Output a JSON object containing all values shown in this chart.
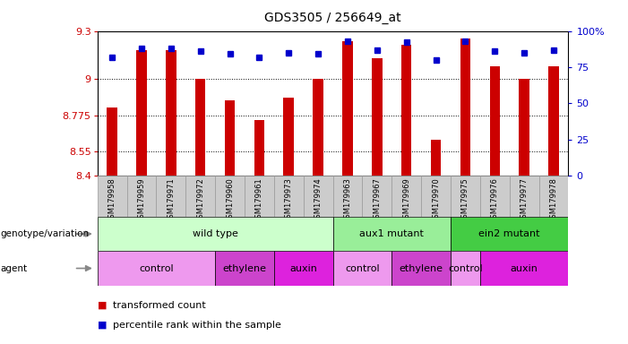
{
  "title": "GDS3505 / 256649_at",
  "samples": [
    "GSM179958",
    "GSM179959",
    "GSM179971",
    "GSM179972",
    "GSM179960",
    "GSM179961",
    "GSM179973",
    "GSM179974",
    "GSM179963",
    "GSM179967",
    "GSM179969",
    "GSM179970",
    "GSM179975",
    "GSM179976",
    "GSM179977",
    "GSM179978"
  ],
  "bar_values": [
    8.825,
    9.18,
    9.18,
    9.0,
    8.87,
    8.745,
    8.885,
    9.0,
    9.235,
    9.13,
    9.215,
    8.625,
    9.255,
    9.08,
    9.0,
    9.08
  ],
  "percentile_values": [
    82,
    88,
    88,
    86,
    84,
    82,
    85,
    84,
    93,
    87,
    92,
    80,
    93,
    86,
    85,
    87
  ],
  "y_min": 8.4,
  "y_max": 9.3,
  "y_ticks": [
    8.4,
    8.55,
    8.775,
    9.0,
    9.3
  ],
  "y_tick_labels": [
    "8.4",
    "8.55",
    "8.775",
    "9",
    "9.3"
  ],
  "right_y_ticks": [
    0,
    25,
    50,
    75,
    100
  ],
  "right_y_tick_labels": [
    "0",
    "25",
    "50",
    "75",
    "100%"
  ],
  "bar_color": "#cc0000",
  "dot_color": "#0000cc",
  "bar_width": 0.35,
  "genotype_groups": [
    {
      "label": "wild type",
      "start": 0,
      "end": 7,
      "color": "#ccffcc"
    },
    {
      "label": "aux1 mutant",
      "start": 8,
      "end": 11,
      "color": "#99ee99"
    },
    {
      "label": "ein2 mutant",
      "start": 12,
      "end": 15,
      "color": "#44cc44"
    }
  ],
  "agent_groups": [
    {
      "label": "control",
      "start": 0,
      "end": 3,
      "color": "#ee99ee"
    },
    {
      "label": "ethylene",
      "start": 4,
      "end": 5,
      "color": "#cc44cc"
    },
    {
      "label": "auxin",
      "start": 6,
      "end": 7,
      "color": "#dd22dd"
    },
    {
      "label": "control",
      "start": 8,
      "end": 9,
      "color": "#ee99ee"
    },
    {
      "label": "ethylene",
      "start": 10,
      "end": 11,
      "color": "#cc44cc"
    },
    {
      "label": "control",
      "start": 12,
      "end": 12,
      "color": "#ee99ee"
    },
    {
      "label": "auxin",
      "start": 13,
      "end": 15,
      "color": "#dd22dd"
    }
  ],
  "legend_items": [
    {
      "label": "transformed count",
      "color": "#cc0000"
    },
    {
      "label": "percentile rank within the sample",
      "color": "#0000cc"
    }
  ],
  "left_tick_color": "#cc0000",
  "right_tick_color": "#0000cc",
  "grid_color": "#000000",
  "arrow_color": "#888888"
}
